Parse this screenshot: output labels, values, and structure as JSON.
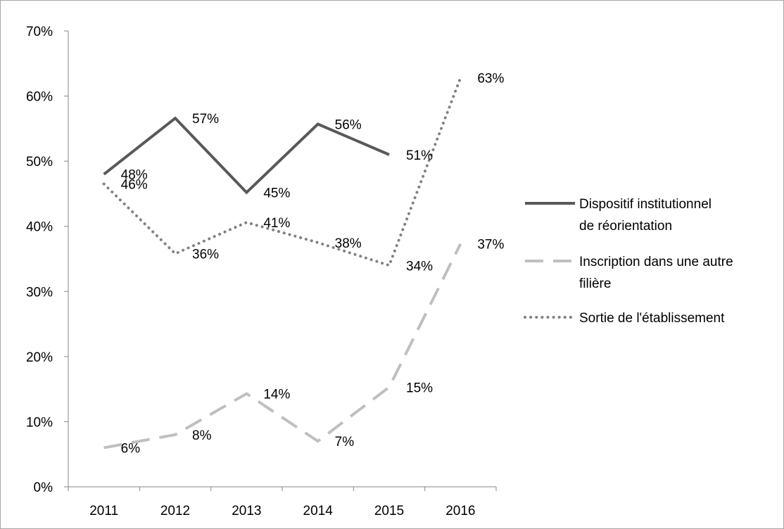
{
  "chart_data": {
    "type": "line",
    "categories": [
      "2011",
      "2012",
      "2013",
      "2014",
      "2015",
      "2016"
    ],
    "y_ticks": [
      "0%",
      "10%",
      "20%",
      "30%",
      "40%",
      "50%",
      "60%",
      "70%"
    ],
    "ylim": [
      0,
      70
    ],
    "y_unit": "%",
    "grid": false,
    "legend_position": "right",
    "series": [
      {
        "name": "Dispositif institutionnel de réorientation",
        "legend_lines": [
          "Dispositif institutionnel",
          "de réorientation"
        ],
        "values": [
          48,
          56.6,
          45.2,
          55.7,
          51,
          null
        ],
        "labels": [
          "48%",
          "57%",
          "45%",
          "56%",
          "51%",
          null
        ],
        "color": "#595959",
        "style": "solid"
      },
      {
        "name": "Inscription dans une autre filière",
        "legend_lines": [
          "Inscription dans une autre",
          "filière"
        ],
        "values": [
          6,
          8,
          14.3,
          7,
          15.3,
          37.3
        ],
        "labels": [
          "6%",
          "8%",
          "14%",
          "7%",
          "15%",
          "37%"
        ],
        "color": "#bfbfbf",
        "style": "dashed"
      },
      {
        "name": "Sortie de l'établissement",
        "legend_lines": [
          "Sortie de l'établissement"
        ],
        "values": [
          46.5,
          35.8,
          40.6,
          37.5,
          34,
          62.8
        ],
        "labels": [
          "46%",
          "36%",
          "41%",
          "38%",
          "34%",
          "63%"
        ],
        "color": "#808080",
        "style": "dotted"
      }
    ]
  }
}
